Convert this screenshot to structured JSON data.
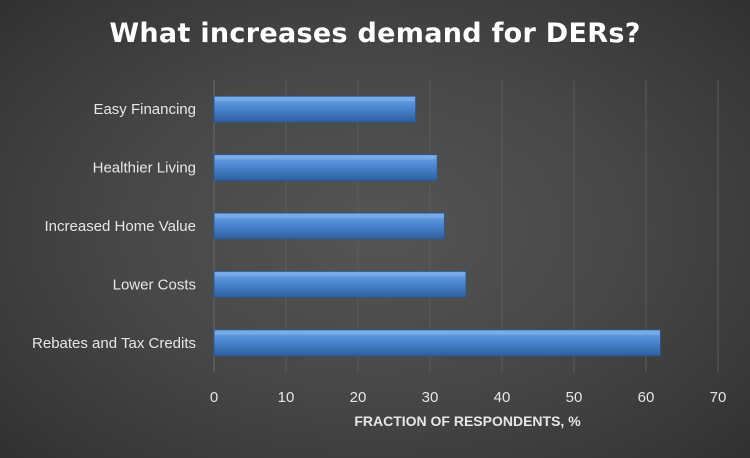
{
  "chart_data": {
    "type": "bar",
    "orientation": "horizontal",
    "title": "What increases demand for DERs?",
    "xlabel": "FRACTION OF RESPONDENTS, %",
    "ylabel": "",
    "categories": [
      "Easy Financing",
      "Healthier Living",
      "Increased Home Value",
      "Lower Costs",
      "Rebates and Tax Credits"
    ],
    "values": [
      28,
      31,
      32,
      35,
      62
    ],
    "xlim": [
      0,
      70
    ],
    "xticks": [
      0,
      10,
      20,
      30,
      40,
      50,
      60,
      70
    ],
    "grid": true,
    "legend": "none",
    "bar_color": "#4a86d0"
  }
}
